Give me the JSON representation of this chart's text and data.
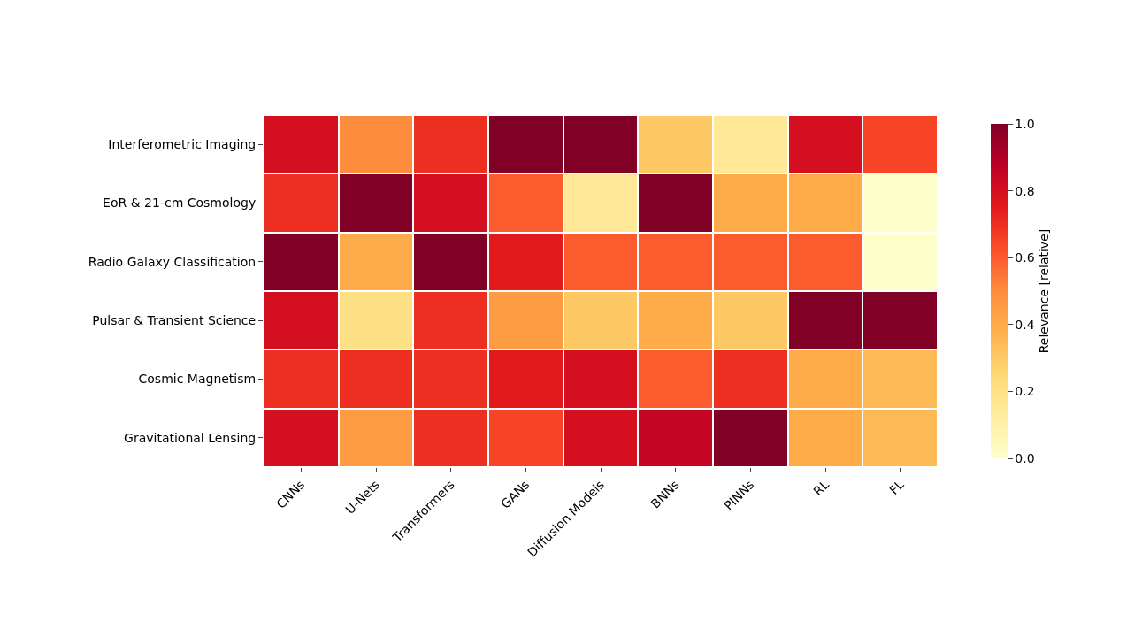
{
  "chart_data": {
    "type": "heatmap",
    "clabel": "Relevance [relative]",
    "categories": [
      "CNNs",
      "U-Nets",
      "Transformers",
      "GANs",
      "Diffusion Models",
      "BNNs",
      "PINNs",
      "RL",
      "FL"
    ],
    "y_categories": [
      "Interferometric Imaging",
      "EoR & 21-cm Cosmology",
      "Radio Galaxy Classification",
      "Pulsar & Transient Science",
      "Cosmic Magnetism",
      "Gravitational Lensing"
    ],
    "cells": [
      [
        0.8,
        0.5,
        0.7,
        1.0,
        1.0,
        0.3,
        0.15,
        0.8,
        0.65
      ],
      [
        0.7,
        1.0,
        0.8,
        0.6,
        0.15,
        1.0,
        0.4,
        0.4,
        0.0
      ],
      [
        1.0,
        0.4,
        1.0,
        0.75,
        0.6,
        0.6,
        0.6,
        0.6,
        0.0
      ],
      [
        0.8,
        0.2,
        0.7,
        0.45,
        0.3,
        0.4,
        0.3,
        1.0,
        1.0
      ],
      [
        0.7,
        0.7,
        0.7,
        0.75,
        0.8,
        0.6,
        0.7,
        0.4,
        0.35
      ],
      [
        0.8,
        0.45,
        0.7,
        0.65,
        0.8,
        0.85,
        1.0,
        0.4,
        0.35
      ]
    ],
    "clim": [
      0,
      1
    ],
    "cticks": [
      {
        "value": 0,
        "label": "0.0"
      },
      0.2,
      0.4,
      0.6,
      0.8,
      {
        "value": 1,
        "label": "1.0"
      }
    ]
  }
}
